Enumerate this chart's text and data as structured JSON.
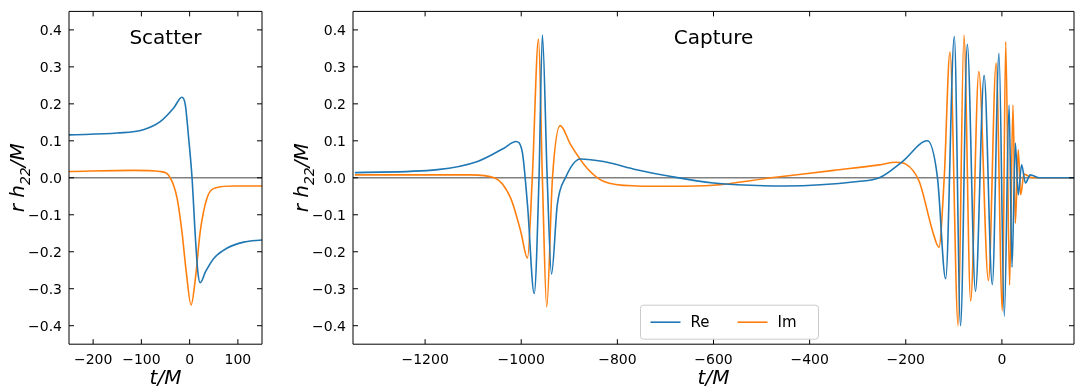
{
  "chart_data": [
    {
      "type": "line",
      "title": "Scatter",
      "xlabel": "t/M",
      "ylabel": "r h$_{22}$/M",
      "xlim": [
        -250,
        150
      ],
      "ylim": [
        -0.45,
        0.45
      ],
      "xticks": [
        {
          "value": -200,
          "label": "−200"
        },
        {
          "value": -100,
          "label": "−100"
        },
        {
          "value": 0,
          "label": "0"
        },
        100
      ],
      "yticks": [
        {
          "value": -0.4,
          "label": "−0.4"
        },
        {
          "value": -0.3,
          "label": "−0.3"
        },
        {
          "value": -0.2,
          "label": "−0.2"
        },
        {
          "value": -0.1,
          "label": "−0.1"
        },
        {
          "value": 0,
          "label": "0.0"
        },
        0.1,
        0.2,
        0.3,
        0.4
      ],
      "grid": false,
      "legend": false,
      "ref_lines": [
        {
          "axis": "y",
          "value": 0,
          "color": "#808080"
        }
      ],
      "series": [
        {
          "color": "#1f77b4",
          "x": [
            -250,
            -150,
            -96,
            -61,
            -33,
            -16,
            -9,
            -2,
            5,
            12,
            17,
            22,
            33,
            50,
            78,
            112,
            150
          ],
          "values": [
            0.116,
            0.121,
            0.13,
            0.152,
            0.189,
            0.218,
            0.198,
            0.107,
            0,
            -0.163,
            -0.254,
            -0.284,
            -0.254,
            -0.218,
            -0.19,
            -0.174,
            -0.168
          ]
        },
        {
          "color": "#ff7f0e",
          "x": [
            -250,
            -117,
            -61,
            -40,
            -26,
            -16,
            -7,
            3,
            12,
            22,
            36,
            57,
            92,
            150
          ],
          "values": [
            0.017,
            0.02,
            0.017,
            0,
            -0.055,
            -0.145,
            -0.254,
            -0.344,
            -0.272,
            -0.145,
            -0.055,
            -0.026,
            -0.022,
            -0.022
          ]
        }
      ]
    },
    {
      "type": "line",
      "title": "Capture",
      "xlabel": "t/M",
      "ylabel": "r h$_{22}$/M",
      "xlim": [
        -1350,
        150
      ],
      "ylim": [
        -0.45,
        0.45
      ],
      "xticks": [
        {
          "value": -1200,
          "label": "−1200"
        },
        {
          "value": -1000,
          "label": "−1000"
        },
        {
          "value": -800,
          "label": "−800"
        },
        {
          "value": -600,
          "label": "−600"
        },
        {
          "value": -400,
          "label": "−400"
        },
        {
          "value": -200,
          "label": "−200"
        },
        {
          "value": 0,
          "label": "0"
        }
      ],
      "yticks": [
        {
          "value": -0.4,
          "label": "−0.4"
        },
        {
          "value": -0.3,
          "label": "−0.3"
        },
        {
          "value": -0.2,
          "label": "−0.2"
        },
        {
          "value": -0.1,
          "label": "−0.1"
        },
        {
          "value": 0,
          "label": "0.0"
        },
        0.1,
        0.2,
        0.3,
        0.4
      ],
      "grid": false,
      "legend": "bottom",
      "ref_lines": [
        {
          "axis": "y",
          "value": 0,
          "color": "#808080"
        }
      ],
      "series": [
        {
          "name": "Re",
          "color": "#1f77b4",
          "x": [
            -1346,
            -1174,
            -1091,
            -1036,
            -1011,
            -998,
            -987,
            -973,
            -963,
            -956,
            -946,
            -937,
            -925,
            -908,
            -877,
            -829,
            -760,
            -691,
            -600,
            -450,
            -300,
            -255,
            -207,
            -155,
            -134,
            -117,
            -99,
            -86,
            -72,
            -55,
            -37,
            -20,
            -6,
            5,
            15,
            21,
            28,
            34,
            41,
            49,
            59,
            77,
            150
          ],
          "values": [
            0.014,
            0.022,
            0.044,
            0.08,
            0.098,
            0.071,
            -0.073,
            -0.313,
            0,
            0.386,
            0,
            -0.26,
            -0.073,
            0,
            0.051,
            0.044,
            0.022,
            0.004,
            -0.014,
            -0.022,
            -0.01,
            0,
            0.044,
            0.1,
            0,
            -0.273,
            0.382,
            -0.4,
            0.361,
            -0.307,
            0.277,
            -0.289,
            0.337,
            -0.375,
            0.197,
            -0.242,
            0.094,
            -0.046,
            0.035,
            -0.014,
            0.008,
            0,
            0
          ]
        },
        {
          "name": "Im",
          "color": "#ff7f0e",
          "x": [
            -1346,
            -1105,
            -1056,
            -1022,
            -1001,
            -987,
            -977,
            -964,
            -956,
            -947,
            -935,
            -919,
            -897,
            -863,
            -828,
            -760,
            -691,
            -600,
            -480,
            -350,
            -255,
            -220,
            -200,
            -172,
            -144,
            -131,
            -120,
            -108,
            -91,
            -79,
            -65,
            -48,
            -28,
            -12,
            1,
            8,
            16,
            23,
            28,
            34,
            39,
            46,
            63,
            150
          ],
          "values": [
            0.008,
            0.008,
            0,
            -0.055,
            -0.145,
            -0.217,
            0,
            0.375,
            0,
            -0.349,
            0,
            0.141,
            0.089,
            0.026,
            -0.01,
            -0.022,
            -0.023,
            -0.02,
            0,
            0.02,
            0.035,
            0.042,
            0.037,
            -0.01,
            -0.145,
            -0.188,
            0,
            0.34,
            -0.4,
            0.386,
            -0.333,
            0.287,
            -0.278,
            0.31,
            -0.36,
            0.368,
            -0.29,
            0.197,
            -0.123,
            0.076,
            -0.046,
            0.01,
            0,
            0
          ]
        }
      ]
    }
  ]
}
